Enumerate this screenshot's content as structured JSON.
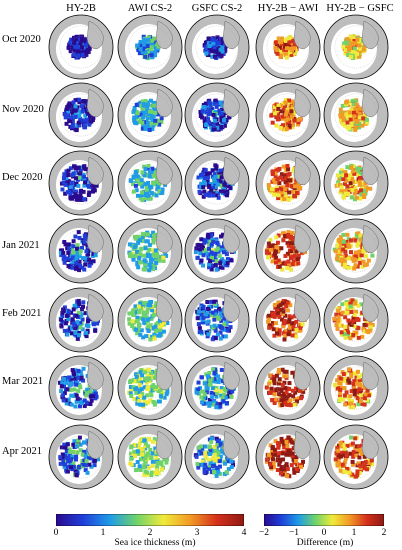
{
  "columns": [
    "HY-2B",
    "AWI CS-2",
    "GSFC CS-2",
    "HY-2B − AWI",
    "HY-2B − GSFC"
  ],
  "rows": [
    "Oct 2020",
    "Nov 2020",
    "Dec 2020",
    "Jan 2021",
    "Feb 2021",
    "Mar 2021",
    "Apr 2021"
  ],
  "colorbars": {
    "thickness": {
      "label": "Sea ice thickness (m)",
      "ticks": [
        "0",
        "1",
        "2",
        "3",
        "4"
      ],
      "colors": [
        "#2a0a8e",
        "#1f3fd8",
        "#1f9be8",
        "#6fd36a",
        "#f0ea3a",
        "#f29a26",
        "#d4301c",
        "#8e1a14"
      ]
    },
    "difference": {
      "label": "Difference (m)",
      "ticks": [
        "−2",
        "−1",
        "0",
        "1",
        "2"
      ],
      "colors": [
        "#2a0a8e",
        "#1f3fd8",
        "#1f9be8",
        "#6fd36a",
        "#f0ea3a",
        "#f29a26",
        "#d4301c",
        "#8e1a14"
      ]
    }
  },
  "colors": {
    "land": "#bdbdbd",
    "ocean": "#ffffff",
    "ice_thin": "#1f9be8",
    "ice_mid": "#6fd36a",
    "ice_thick": "#d4301c"
  }
}
